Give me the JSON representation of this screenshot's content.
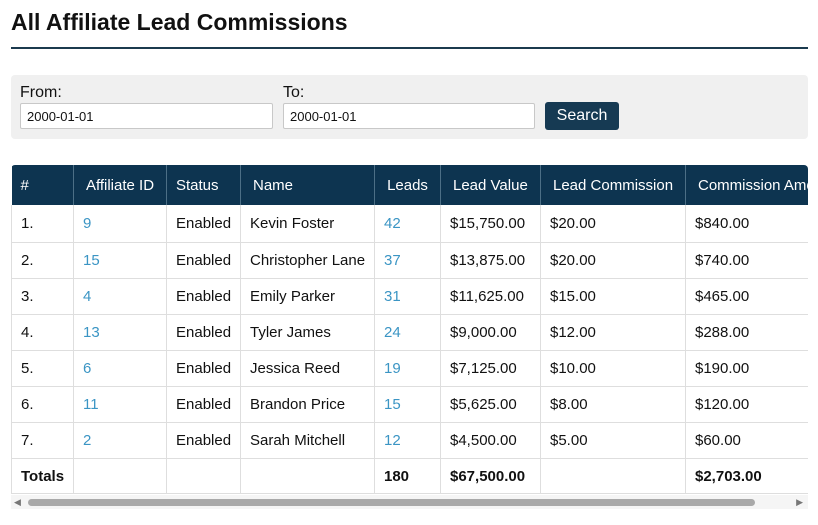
{
  "page": {
    "title": "All Affiliate Lead Commissions"
  },
  "filters": {
    "from_label": "From:",
    "from_value": "2000-01-01",
    "to_label": "To:",
    "to_value": "2000-01-01",
    "search_label": "Search"
  },
  "table": {
    "headers": [
      "#",
      "Affiliate ID",
      "Status",
      "Name",
      "Leads",
      "Lead Value",
      "Lead Commission",
      "Commission Amount"
    ],
    "rows": [
      {
        "num": "1.",
        "affiliate_id": "9",
        "status": "Enabled",
        "name": "Kevin Foster",
        "leads": "42",
        "lead_value": "$15,750.00",
        "lead_commission": "$20.00",
        "commission_amount": "$840.00"
      },
      {
        "num": "2.",
        "affiliate_id": "15",
        "status": "Enabled",
        "name": "Christopher Lane",
        "leads": "37",
        "lead_value": "$13,875.00",
        "lead_commission": "$20.00",
        "commission_amount": "$740.00"
      },
      {
        "num": "3.",
        "affiliate_id": "4",
        "status": "Enabled",
        "name": "Emily Parker",
        "leads": "31",
        "lead_value": "$11,625.00",
        "lead_commission": "$15.00",
        "commission_amount": "$465.00"
      },
      {
        "num": "4.",
        "affiliate_id": "13",
        "status": "Enabled",
        "name": "Tyler James",
        "leads": "24",
        "lead_value": "$9,000.00",
        "lead_commission": "$12.00",
        "commission_amount": "$288.00"
      },
      {
        "num": "5.",
        "affiliate_id": "6",
        "status": "Enabled",
        "name": "Jessica Reed",
        "leads": "19",
        "lead_value": "$7,125.00",
        "lead_commission": "$10.00",
        "commission_amount": "$190.00"
      },
      {
        "num": "6.",
        "affiliate_id": "11",
        "status": "Enabled",
        "name": "Brandon Price",
        "leads": "15",
        "lead_value": "$5,625.00",
        "lead_commission": "$8.00",
        "commission_amount": "$120.00"
      },
      {
        "num": "7.",
        "affiliate_id": "2",
        "status": "Enabled",
        "name": "Sarah Mitchell",
        "leads": "12",
        "lead_value": "$4,500.00",
        "lead_commission": "$5.00",
        "commission_amount": "$60.00"
      }
    ],
    "totals": {
      "label": "Totals",
      "leads": "180",
      "lead_value": "$67,500.00",
      "commission_amount": "$2,703.00"
    }
  },
  "scrollbar": {
    "left_arrow_icon": "◀",
    "right_arrow_icon": "▶"
  },
  "colors": {
    "header_bg": "#0d3450",
    "button_bg": "#163a53",
    "link": "#3b95c4"
  }
}
